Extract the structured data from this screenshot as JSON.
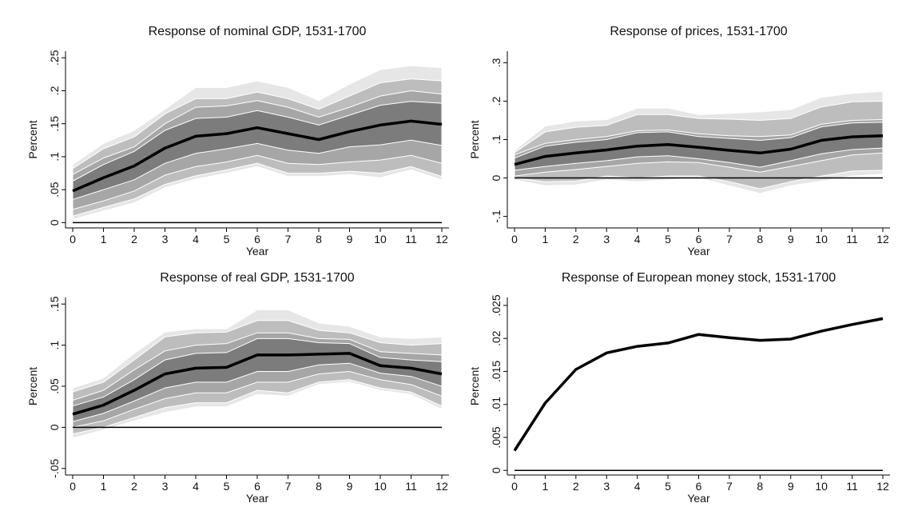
{
  "colors": {
    "band_outer": "#e6e6e6",
    "band_90": "#bdbdbd",
    "band_80": "#a6a6a6",
    "band_68": "#7c7c7c",
    "line": "#000000",
    "zero_line": "#000000"
  },
  "chart_data": [
    {
      "type": "area",
      "title": "Response of nominal GDP, 1531-1700",
      "xlabel": "Year",
      "ylabel": "Percent",
      "x": [
        0,
        1,
        2,
        3,
        4,
        5,
        6,
        7,
        8,
        9,
        10,
        11,
        12
      ],
      "xticks": [
        "0",
        "1",
        "2",
        "3",
        "4",
        "5",
        "6",
        "7",
        "8",
        "9",
        "10",
        "11",
        "12"
      ],
      "yticks": [
        0,
        0.05,
        0.1,
        0.15,
        0.2,
        0.25
      ],
      "ytick_labels": [
        "0",
        ".05",
        ".1",
        ".15",
        ".2",
        ".25"
      ],
      "ylim": [
        -0.008,
        0.26
      ],
      "grid": false,
      "zero_line": true,
      "point_estimate": [
        0.048,
        0.068,
        0.086,
        0.113,
        0.131,
        0.135,
        0.144,
        0.135,
        0.126,
        0.138,
        0.148,
        0.154,
        0.149
      ],
      "bands": [
        {
          "level": "outer",
          "lower": [
            0.005,
            0.018,
            0.03,
            0.053,
            0.066,
            0.075,
            0.085,
            0.07,
            0.07,
            0.073,
            0.068,
            0.08,
            0.065
          ],
          "upper": [
            0.088,
            0.12,
            0.14,
            0.172,
            0.205,
            0.205,
            0.215,
            0.205,
            0.185,
            0.21,
            0.232,
            0.238,
            0.235
          ]
        },
        {
          "level": "90",
          "lower": [
            0.01,
            0.023,
            0.036,
            0.058,
            0.071,
            0.08,
            0.09,
            0.075,
            0.075,
            0.078,
            0.075,
            0.085,
            0.07
          ],
          "upper": [
            0.082,
            0.112,
            0.13,
            0.165,
            0.188,
            0.188,
            0.198,
            0.188,
            0.172,
            0.192,
            0.212,
            0.218,
            0.215
          ]
        },
        {
          "level": "80",
          "lower": [
            0.02,
            0.033,
            0.048,
            0.072,
            0.085,
            0.092,
            0.102,
            0.09,
            0.088,
            0.092,
            0.095,
            0.102,
            0.09
          ],
          "upper": [
            0.073,
            0.098,
            0.115,
            0.15,
            0.175,
            0.177,
            0.185,
            0.175,
            0.16,
            0.175,
            0.192,
            0.2,
            0.195
          ]
        },
        {
          "level": "68",
          "lower": [
            0.035,
            0.05,
            0.065,
            0.09,
            0.105,
            0.112,
            0.12,
            0.11,
            0.105,
            0.115,
            0.118,
            0.125,
            0.117
          ],
          "upper": [
            0.063,
            0.088,
            0.108,
            0.14,
            0.158,
            0.16,
            0.17,
            0.16,
            0.148,
            0.163,
            0.178,
            0.184,
            0.181
          ]
        }
      ]
    },
    {
      "type": "area",
      "title": "Response of prices, 1531-1700",
      "xlabel": "Year",
      "ylabel": "Percent",
      "x": [
        0,
        1,
        2,
        3,
        4,
        5,
        6,
        7,
        8,
        9,
        10,
        11,
        12
      ],
      "xticks": [
        "0",
        "1",
        "2",
        "3",
        "4",
        "5",
        "6",
        "7",
        "8",
        "9",
        "10",
        "11",
        "12"
      ],
      "yticks": [
        -0.1,
        0,
        0.1,
        0.2,
        0.3
      ],
      "ytick_labels": [
        "-.1",
        "0",
        ".1",
        ".2",
        ".3"
      ],
      "ylim": [
        -0.13,
        0.33
      ],
      "grid": false,
      "zero_line": true,
      "point_estimate": [
        0.035,
        0.056,
        0.065,
        0.073,
        0.083,
        0.087,
        0.08,
        0.072,
        0.065,
        0.075,
        0.098,
        0.107,
        0.11
      ],
      "bands": [
        {
          "level": "outer",
          "lower": [
            -0.005,
            -0.02,
            -0.018,
            -0.005,
            -0.01,
            -0.005,
            0.0,
            -0.02,
            -0.04,
            -0.02,
            -0.008,
            0.005,
            0.01
          ],
          "upper": [
            0.072,
            0.135,
            0.148,
            0.152,
            0.182,
            0.182,
            0.165,
            0.168,
            0.172,
            0.178,
            0.21,
            0.22,
            0.225
          ]
        },
        {
          "level": "90",
          "lower": [
            0.0,
            -0.01,
            -0.008,
            0.005,
            0.0,
            0.005,
            0.005,
            -0.01,
            -0.028,
            -0.01,
            0.005,
            0.018,
            0.02
          ],
          "upper": [
            0.066,
            0.12,
            0.132,
            0.137,
            0.165,
            0.165,
            0.155,
            0.153,
            0.15,
            0.155,
            0.185,
            0.198,
            0.2
          ]
        },
        {
          "level": "80",
          "lower": [
            0.005,
            0.015,
            0.022,
            0.03,
            0.038,
            0.042,
            0.04,
            0.028,
            0.015,
            0.03,
            0.045,
            0.06,
            0.065
          ],
          "upper": [
            0.06,
            0.09,
            0.1,
            0.108,
            0.123,
            0.125,
            0.115,
            0.11,
            0.108,
            0.112,
            0.14,
            0.15,
            0.152
          ]
        },
        {
          "level": "68",
          "lower": [
            0.02,
            0.03,
            0.038,
            0.045,
            0.055,
            0.058,
            0.05,
            0.04,
            0.028,
            0.045,
            0.063,
            0.074,
            0.078
          ],
          "upper": [
            0.052,
            0.083,
            0.093,
            0.1,
            0.118,
            0.12,
            0.108,
            0.103,
            0.098,
            0.105,
            0.133,
            0.143,
            0.145
          ]
        }
      ]
    },
    {
      "type": "area",
      "title": "Response of real GDP, 1531-1700",
      "xlabel": "Year",
      "ylabel": "Percent",
      "x": [
        0,
        1,
        2,
        3,
        4,
        5,
        6,
        7,
        8,
        9,
        10,
        11,
        12
      ],
      "xticks": [
        "0",
        "1",
        "2",
        "3",
        "4",
        "5",
        "6",
        "7",
        "8",
        "9",
        "10",
        "11",
        "12"
      ],
      "yticks": [
        -0.05,
        0,
        0.05,
        0.1,
        0.15
      ],
      "ytick_labels": [
        "-.05",
        "0",
        ".05",
        ".1",
        ".15"
      ],
      "ylim": [
        -0.058,
        0.158
      ],
      "grid": false,
      "zero_line": true,
      "point_estimate": [
        0.016,
        0.027,
        0.045,
        0.065,
        0.072,
        0.073,
        0.088,
        0.088,
        0.089,
        0.09,
        0.075,
        0.072,
        0.065
      ],
      "bands": [
        {
          "level": "outer",
          "lower": [
            -0.013,
            -0.003,
            0.008,
            0.018,
            0.025,
            0.025,
            0.04,
            0.038,
            0.052,
            0.055,
            0.045,
            0.04,
            0.022
          ],
          "upper": [
            0.048,
            0.06,
            0.09,
            0.116,
            0.12,
            0.12,
            0.143,
            0.143,
            0.127,
            0.123,
            0.11,
            0.108,
            0.11
          ]
        },
        {
          "level": "90",
          "lower": [
            -0.008,
            0.0,
            0.012,
            0.024,
            0.03,
            0.03,
            0.045,
            0.042,
            0.055,
            0.058,
            0.048,
            0.043,
            0.026
          ],
          "upper": [
            0.043,
            0.055,
            0.082,
            0.11,
            0.115,
            0.116,
            0.13,
            0.13,
            0.118,
            0.115,
            0.103,
            0.1,
            0.102
          ]
        },
        {
          "level": "80",
          "lower": [
            0.0,
            0.008,
            0.022,
            0.035,
            0.042,
            0.042,
            0.055,
            0.055,
            0.065,
            0.068,
            0.058,
            0.052,
            0.038
          ],
          "upper": [
            0.033,
            0.045,
            0.07,
            0.093,
            0.1,
            0.102,
            0.115,
            0.115,
            0.108,
            0.107,
            0.092,
            0.09,
            0.088
          ]
        },
        {
          "level": "68",
          "lower": [
            0.007,
            0.017,
            0.032,
            0.048,
            0.055,
            0.055,
            0.068,
            0.068,
            0.076,
            0.078,
            0.066,
            0.062,
            0.05
          ],
          "upper": [
            0.026,
            0.037,
            0.058,
            0.082,
            0.09,
            0.091,
            0.108,
            0.108,
            0.103,
            0.102,
            0.085,
            0.082,
            0.08
          ]
        }
      ]
    },
    {
      "type": "line",
      "title": "Response of European money stock, 1531-1700",
      "xlabel": "Year",
      "ylabel": "Percent",
      "x": [
        0,
        1,
        2,
        3,
        4,
        5,
        6,
        7,
        8,
        9,
        10,
        11,
        12
      ],
      "xticks": [
        "0",
        "1",
        "2",
        "3",
        "4",
        "5",
        "6",
        "7",
        "8",
        "9",
        "10",
        "11",
        "12"
      ],
      "yticks": [
        0,
        0.005,
        0.01,
        0.015,
        0.02,
        0.025
      ],
      "ytick_labels": [
        "0",
        ".005",
        ".01",
        ".015",
        ".02",
        ".025"
      ],
      "ylim": [
        -0.0007,
        0.0262
      ],
      "grid": false,
      "zero_line": true,
      "point_estimate": [
        0.003,
        0.0102,
        0.0153,
        0.0178,
        0.0188,
        0.0193,
        0.0206,
        0.0201,
        0.0197,
        0.0199,
        0.0211,
        0.0221,
        0.023
      ],
      "bands": [
        {
          "level": "outer",
          "lower": [
            0.0028,
            0.01,
            0.0151,
            0.0176,
            0.0186,
            0.019,
            0.0203,
            0.0198,
            0.0194,
            0.0196,
            0.0208,
            0.0218,
            0.0225
          ],
          "upper": [
            0.0032,
            0.0104,
            0.0155,
            0.018,
            0.019,
            0.0196,
            0.0209,
            0.0204,
            0.02,
            0.0202,
            0.0214,
            0.0224,
            0.0235
          ]
        },
        {
          "level": "90",
          "lower": [
            0.0029,
            0.0101,
            0.0152,
            0.0177,
            0.0187,
            0.0191,
            0.0204,
            0.0199,
            0.0195,
            0.0197,
            0.0209,
            0.0219,
            0.0227
          ],
          "upper": [
            0.0031,
            0.0103,
            0.0154,
            0.0179,
            0.0189,
            0.0195,
            0.0208,
            0.0203,
            0.0199,
            0.0201,
            0.0213,
            0.0223,
            0.0233
          ]
        }
      ]
    }
  ]
}
